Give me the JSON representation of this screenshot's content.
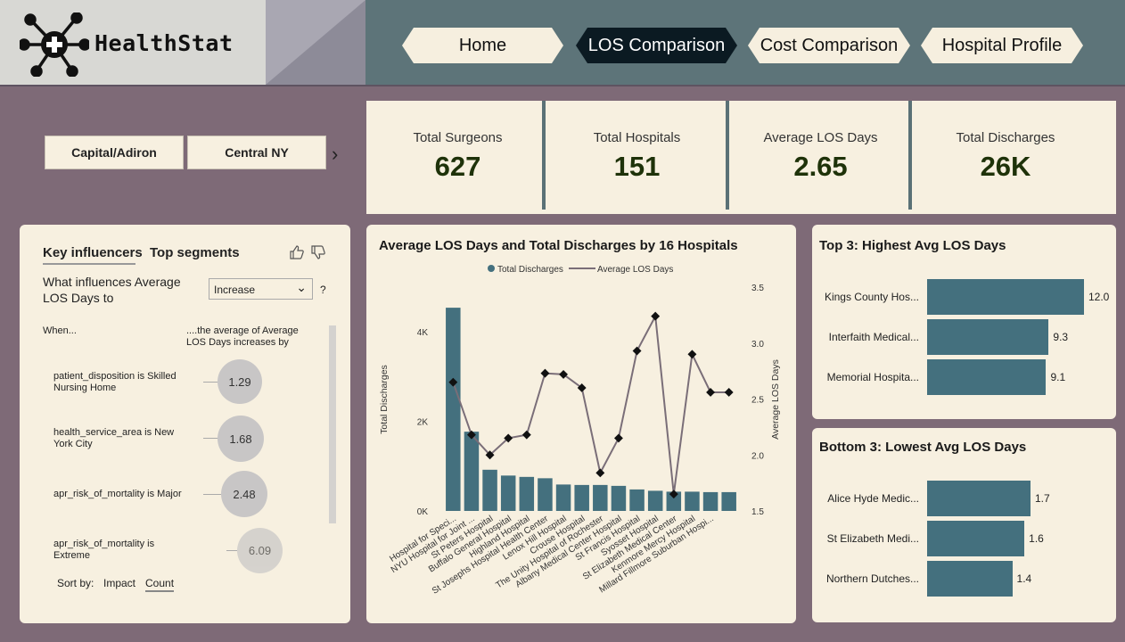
{
  "header": {
    "app_name": "HealthStat",
    "nav": [
      "Home",
      "LOS Comparison",
      "Cost Comparison",
      "Hospital Profile"
    ],
    "active_nav": "LOS Comparison"
  },
  "slicer": {
    "items": [
      "Capital/Adiron",
      "Central NY"
    ]
  },
  "kpis": [
    {
      "label": "Total Surgeons",
      "value": "627"
    },
    {
      "label": "Total Hospitals",
      "value": "151"
    },
    {
      "label": "Average LOS Days",
      "value": "2.65"
    },
    {
      "label": "Total Discharges",
      "value": "26K"
    }
  ],
  "key_influencers": {
    "tab_active": "Key influencers",
    "tab_other": "Top segments",
    "question": "What influences Average LOS Days to",
    "dropdown_value": "Increase",
    "help": "?",
    "col_when": "When...",
    "col_result": "....the average of Average LOS Days increases by",
    "items": [
      {
        "label": "patient_disposition is Skilled Nursing Home",
        "value": "1.29"
      },
      {
        "label": "health_service_area is New York City",
        "value": "1.68"
      },
      {
        "label": "apr_risk_of_mortality is Major",
        "value": "2.48"
      },
      {
        "label": "apr_risk_of_mortality is Extreme",
        "value": "6.09"
      }
    ],
    "sort_label": "Sort by:",
    "sort_impact": "Impact",
    "sort_count": "Count"
  },
  "chart_data": [
    {
      "type": "bar+line",
      "title": "Average LOS Days and Total Discharges by 16 Hospitals",
      "legend": [
        "Total Discharges",
        "Average LOS Days"
      ],
      "ylabel": "Total Discharges",
      "y2label": "Average LOS Days",
      "ylim": [
        0,
        5000
      ],
      "y2lim": [
        1.5,
        3.5
      ],
      "yticks": [
        "0K",
        "2K",
        "4K"
      ],
      "y2ticks": [
        "1.5",
        "2.0",
        "2.5",
        "3.0",
        "3.5"
      ],
      "categories": [
        "Hospital for Speci...",
        "NYU Hospital for Joint ...",
        "St Peters Hospital",
        "Buffalo General Hospital",
        "Highland Hospital",
        "St Josephs Hospital Health Center",
        "Lenox Hill Hospital",
        "Crouse Hospital",
        "The Unity Hospital of Rochester",
        "Albany Medical Center Hospital",
        "St Francis Hospital",
        "Syosset Hospital",
        "St Elizabeth Medical Center",
        "Kenmore Mercy Hospital",
        "Millard Fillmore Suburban Hospi...",
        ""
      ],
      "series": [
        {
          "name": "Total Discharges",
          "values": [
            4540,
            1770,
            920,
            790,
            760,
            730,
            590,
            580,
            580,
            560,
            480,
            450,
            430,
            430,
            420,
            420
          ]
        },
        {
          "name": "Average LOS Days",
          "values": [
            2.65,
            2.18,
            2.0,
            2.15,
            2.18,
            2.73,
            2.72,
            2.6,
            1.84,
            2.15,
            2.93,
            3.24,
            1.65,
            2.9,
            2.56,
            2.56
          ]
        }
      ]
    },
    {
      "type": "bar",
      "title": "Top 3: Highest Avg LOS Days",
      "categories": [
        "Kings County Hos...",
        "Interfaith Medical...",
        "Memorial Hospita..."
      ],
      "values": [
        12.0,
        9.3,
        9.1
      ],
      "labels": [
        "12.0",
        "9.3",
        "9.1"
      ]
    },
    {
      "type": "bar",
      "title": "Bottom 3: Lowest Avg LOS Days",
      "categories": [
        "Alice Hyde Medic...",
        "St Elizabeth Medi...",
        "Northern Dutches..."
      ],
      "values": [
        1.7,
        1.6,
        1.4
      ],
      "labels": [
        "1.7",
        "1.6",
        "1.4"
      ]
    }
  ],
  "colors": {
    "bar": "#44707e",
    "line": "#7a6e78",
    "panel": "#f7f0e0",
    "background": "#7e6a77",
    "nav": "#5d7479"
  }
}
